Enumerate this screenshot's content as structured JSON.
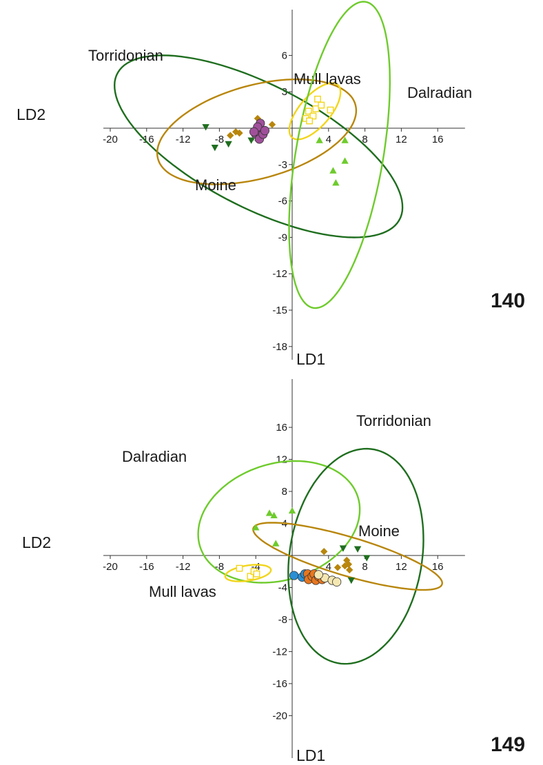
{
  "chart_data": [
    {
      "type": "scatter",
      "plot_number": "140",
      "xlabel": "LD2",
      "ylabel": "LD1",
      "xlim": [
        -20,
        19
      ],
      "ylim": [
        -18.5,
        8.5
      ],
      "xticks": [
        -20,
        -16,
        -12,
        -8,
        -4,
        4,
        8,
        12,
        16
      ],
      "yticks": [
        6,
        3,
        -3,
        -6,
        -9,
        -12,
        -15,
        -18
      ],
      "grid": false,
      "series": [
        {
          "marker": "diamond",
          "color": "#b8860b",
          "points": [
            [
              -3.8,
              0.8
            ],
            [
              -6.8,
              -0.6
            ],
            [
              -6.2,
              -0.3
            ],
            [
              -5.8,
              -0.4
            ],
            [
              -2.2,
              0.3
            ]
          ]
        },
        {
          "marker": "circle",
          "color": "#a0509a",
          "points": [
            [
              -3.5,
              0.4
            ],
            [
              -3.8,
              -0.1
            ],
            [
              -4.0,
              -0.5
            ],
            [
              -3.6,
              -0.9
            ],
            [
              -3.2,
              -0.5
            ],
            [
              -3.8,
              0.1
            ],
            [
              -4.2,
              -0.3
            ],
            [
              -3.0,
              -0.2
            ]
          ]
        },
        {
          "marker": "triangle-down",
          "color": "#1f6e1f",
          "points": [
            [
              -9.5,
              0.1
            ],
            [
              -8.5,
              -1.6
            ],
            [
              -7.0,
              -1.3
            ],
            [
              -4.5,
              -1.0
            ]
          ]
        },
        {
          "marker": "triangle-up",
          "color": "#6ecb2c",
          "points": [
            [
              3.0,
              -1.0
            ],
            [
              5.8,
              -1.0
            ],
            [
              5.8,
              -2.7
            ],
            [
              4.5,
              -3.5
            ],
            [
              4.8,
              -4.5
            ]
          ]
        },
        {
          "marker": "square",
          "color": "#f2d51a",
          "points": [
            [
              1.5,
              0.8
            ],
            [
              1.8,
              1.4
            ],
            [
              2.3,
              1.0
            ],
            [
              2.6,
              1.6
            ],
            [
              2.8,
              2.4
            ],
            [
              3.2,
              1.9
            ],
            [
              4.2,
              1.5
            ],
            [
              1.9,
              0.6
            ]
          ]
        }
      ],
      "ellipses": [
        {
          "label": "Torridonian",
          "color": "#1f6e1f",
          "center": [
            -3.7,
            -1.5
          ],
          "semi_axes": [
            16.7,
            5.3
          ],
          "angle_deg": -19.6
        },
        {
          "label": "Moine",
          "color": "#b8860b",
          "center": [
            -3.9,
            -0.3
          ],
          "semi_axes": [
            11.1,
            3.9
          ],
          "angle_deg": 10.4
        },
        {
          "label": "Mull lavas",
          "color": "#f2d51a",
          "center": [
            2.5,
            1.4
          ],
          "semi_axes": [
            3.35,
            1.45
          ],
          "angle_deg": 37.0
        },
        {
          "label": "Dalradian",
          "color": "#6ecb2c",
          "center": [
            5.2,
            -2.2
          ],
          "semi_axes": [
            12.95,
            4.75
          ],
          "angle_deg": 76.3
        }
      ]
    },
    {
      "type": "scatter",
      "plot_number": "149",
      "xlabel": "LD2",
      "ylabel": "LD1",
      "xlim": [
        -20,
        19
      ],
      "ylim": [
        -20,
        18
      ],
      "xticks": [
        -20,
        -16,
        -12,
        -8,
        -4,
        4,
        8,
        12,
        16
      ],
      "yticks": [
        16,
        12,
        8,
        4,
        -4,
        -8,
        -12,
        -16,
        -20
      ],
      "grid": false,
      "series": [
        {
          "marker": "triangle-up",
          "color": "#6ecb2c",
          "points": [
            [
              -4.0,
              3.5
            ],
            [
              -2.5,
              5.3
            ],
            [
              -2.0,
              5.0
            ],
            [
              0.0,
              5.6
            ],
            [
              -1.8,
              1.5
            ]
          ]
        },
        {
          "marker": "square",
          "color": "#f2d51a",
          "points": [
            [
              -5.8,
              -1.6
            ],
            [
              -4.6,
              -2.6
            ],
            [
              -4.2,
              -2.0
            ],
            [
              -3.9,
              -2.3
            ]
          ]
        },
        {
          "marker": "diamond",
          "color": "#b8860b",
          "points": [
            [
              3.5,
              0.5
            ],
            [
              5.0,
              -1.5
            ],
            [
              6.0,
              -0.6
            ],
            [
              6.2,
              -1.1
            ],
            [
              6.3,
              -1.8
            ],
            [
              5.8,
              -1.3
            ]
          ]
        },
        {
          "marker": "triangle-down",
          "color": "#1f6e1f",
          "points": [
            [
              5.6,
              0.9
            ],
            [
              7.2,
              0.8
            ],
            [
              8.2,
              -0.3
            ],
            [
              6.5,
              -3.1
            ]
          ]
        },
        {
          "marker": "circle",
          "color": "#2a8fd4",
          "points": [
            [
              0.2,
              -2.5
            ],
            [
              1.1,
              -2.7
            ],
            [
              1.4,
              -2.3
            ]
          ]
        },
        {
          "marker": "circle",
          "color": "#e8761e",
          "points": [
            [
              1.7,
              -2.3
            ],
            [
              1.8,
              -3.0
            ],
            [
              2.2,
              -2.6
            ],
            [
              2.4,
              -2.3
            ],
            [
              2.6,
              -3.1
            ],
            [
              2.9,
              -2.6
            ],
            [
              3.3,
              -3.0
            ]
          ]
        },
        {
          "marker": "circle",
          "color": "#f5e7b2",
          "points": [
            [
              3.6,
              -2.8
            ],
            [
              4.4,
              -3.1
            ],
            [
              4.9,
              -3.3
            ],
            [
              2.9,
              -2.4
            ]
          ]
        }
      ],
      "ellipses": [
        {
          "label": "Dalradian",
          "color": "#6ecb2c",
          "center": [
            -1.45,
            4.2
          ],
          "semi_axes": [
            9.25,
            7.15
          ],
          "angle_deg": 26.0
        },
        {
          "label": "Torridonian",
          "color": "#1f6e1f",
          "center": [
            7.0,
            -0.1
          ],
          "semi_axes": [
            13.5,
            7.3
          ],
          "angle_deg": 83.0
        },
        {
          "label": "Moine",
          "color": "#b8860b",
          "center": [
            6.1,
            -0.1
          ],
          "semi_axes": [
            10.95,
            2.4
          ],
          "angle_deg": -18.8
        },
        {
          "label": "Mull lavas",
          "color": "#f2d51a",
          "center": [
            -4.85,
            -2.2
          ],
          "semi_axes": [
            2.55,
            0.95
          ],
          "angle_deg": 10.2
        }
      ]
    }
  ]
}
